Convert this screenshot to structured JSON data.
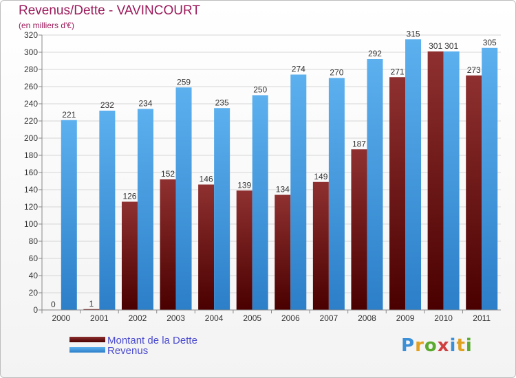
{
  "title": "Revenus/Dette - VAVINCOURT",
  "subtitle": "(en milliers d'€)",
  "logo": {
    "text": "Proxiti",
    "letter_colors": [
      "#3a8fd6",
      "#e0a020",
      "#5aaa30",
      "#d04040",
      "#3a8fd6",
      "#e0a020",
      "#5aaa30"
    ]
  },
  "legend": [
    {
      "label": "Montant de la Dette",
      "color": "#7a1a1a"
    },
    {
      "label": "Revenus",
      "color": "#4aa3e8"
    }
  ],
  "chart_data": {
    "type": "bar",
    "categories": [
      "2000",
      "2001",
      "2002",
      "2003",
      "2004",
      "2005",
      "2006",
      "2007",
      "2008",
      "2009",
      "2010",
      "2011"
    ],
    "series": [
      {
        "name": "Montant de la Dette",
        "color": "#7a1a1a",
        "values": [
          0,
          1,
          126,
          152,
          146,
          139,
          134,
          149,
          187,
          271,
          301,
          273
        ]
      },
      {
        "name": "Revenus",
        "color": "#4aa3e8",
        "values": [
          221,
          232,
          234,
          259,
          235,
          250,
          274,
          270,
          292,
          315,
          301,
          305
        ]
      }
    ],
    "ylim": [
      0,
      320
    ],
    "yticks": [
      0,
      20,
      40,
      60,
      80,
      100,
      120,
      140,
      160,
      180,
      200,
      220,
      240,
      260,
      280,
      300,
      320
    ],
    "grid": true,
    "legend_position": "bottom-left"
  }
}
